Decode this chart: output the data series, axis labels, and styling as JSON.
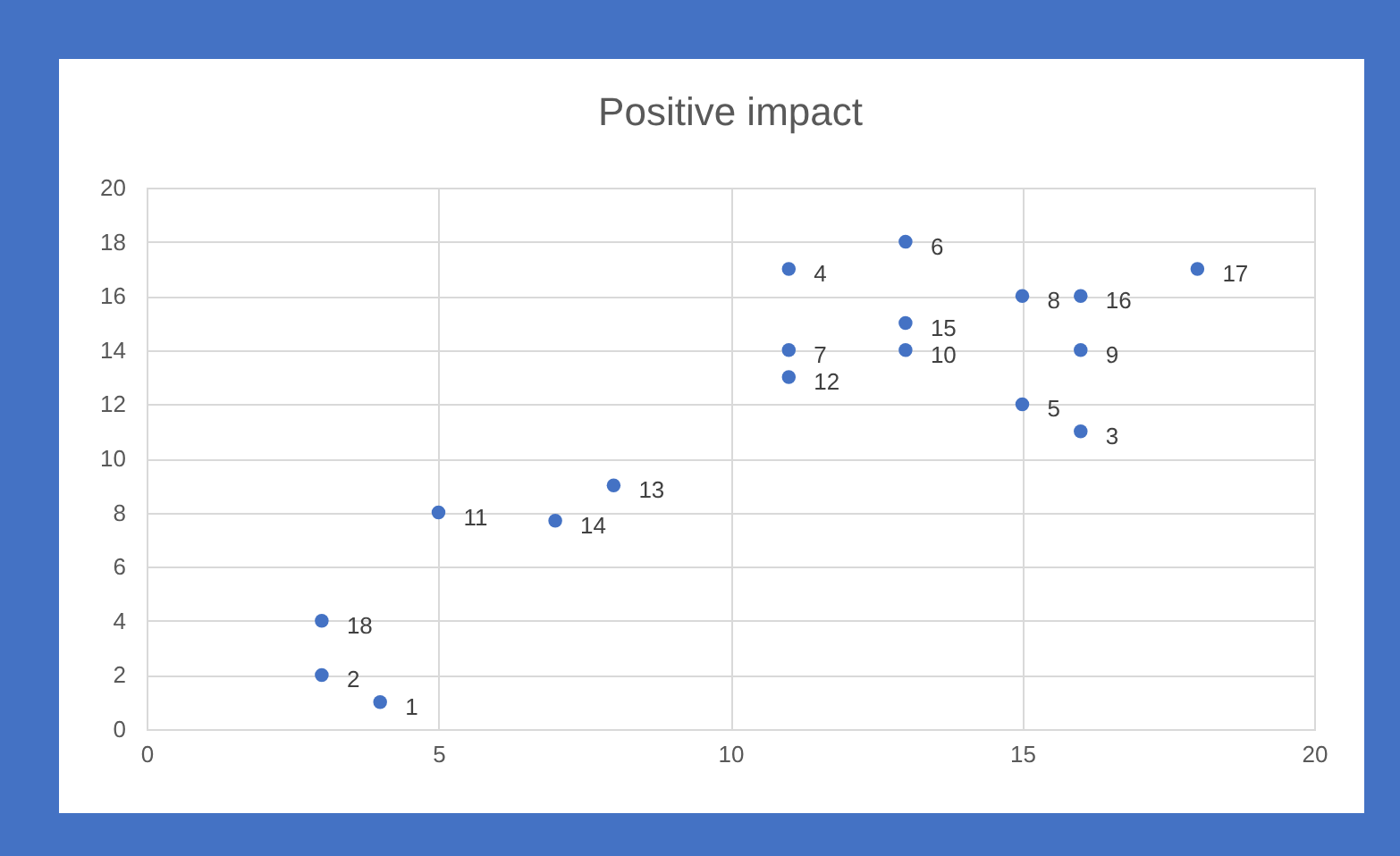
{
  "chart_data": {
    "type": "scatter",
    "title": "Positive impact",
    "x": [
      4,
      3,
      16,
      11,
      15,
      13,
      11,
      15,
      16,
      13,
      5,
      11,
      8,
      7,
      13,
      16,
      18,
      3
    ],
    "series": [
      {
        "color": "#4472c4",
        "values": [
          1,
          2,
          11,
          17,
          12,
          18,
          14,
          16,
          14,
          14,
          8,
          13,
          9,
          7.7,
          15,
          16,
          17,
          4
        ]
      }
    ],
    "annotations": [
      {
        "text": "1",
        "x": 4,
        "y": 1
      },
      {
        "text": "2",
        "x": 3,
        "y": 2
      },
      {
        "text": "3",
        "x": 16,
        "y": 11
      },
      {
        "text": "4",
        "x": 11,
        "y": 17
      },
      {
        "text": "5",
        "x": 15,
        "y": 12
      },
      {
        "text": "6",
        "x": 13,
        "y": 18
      },
      {
        "text": "7",
        "x": 11,
        "y": 14
      },
      {
        "text": "8",
        "x": 15,
        "y": 16
      },
      {
        "text": "9",
        "x": 16,
        "y": 14
      },
      {
        "text": "10",
        "x": 13,
        "y": 14
      },
      {
        "text": "11",
        "x": 5,
        "y": 8
      },
      {
        "text": "12",
        "x": 11,
        "y": 13
      },
      {
        "text": "13",
        "x": 8,
        "y": 9
      },
      {
        "text": "14",
        "x": 7,
        "y": 7.7
      },
      {
        "text": "15",
        "x": 13,
        "y": 15
      },
      {
        "text": "16",
        "x": 16,
        "y": 16
      },
      {
        "text": "17",
        "x": 18,
        "y": 17
      },
      {
        "text": "18",
        "x": 3,
        "y": 4
      }
    ],
    "xlim": [
      0,
      20
    ],
    "ylim": [
      0,
      20
    ],
    "xticks": [
      0,
      5,
      10,
      15,
      20
    ],
    "yticks": [
      0,
      2,
      4,
      6,
      8,
      10,
      12,
      14,
      16,
      18,
      20
    ],
    "grid": true,
    "marker": "circle"
  }
}
